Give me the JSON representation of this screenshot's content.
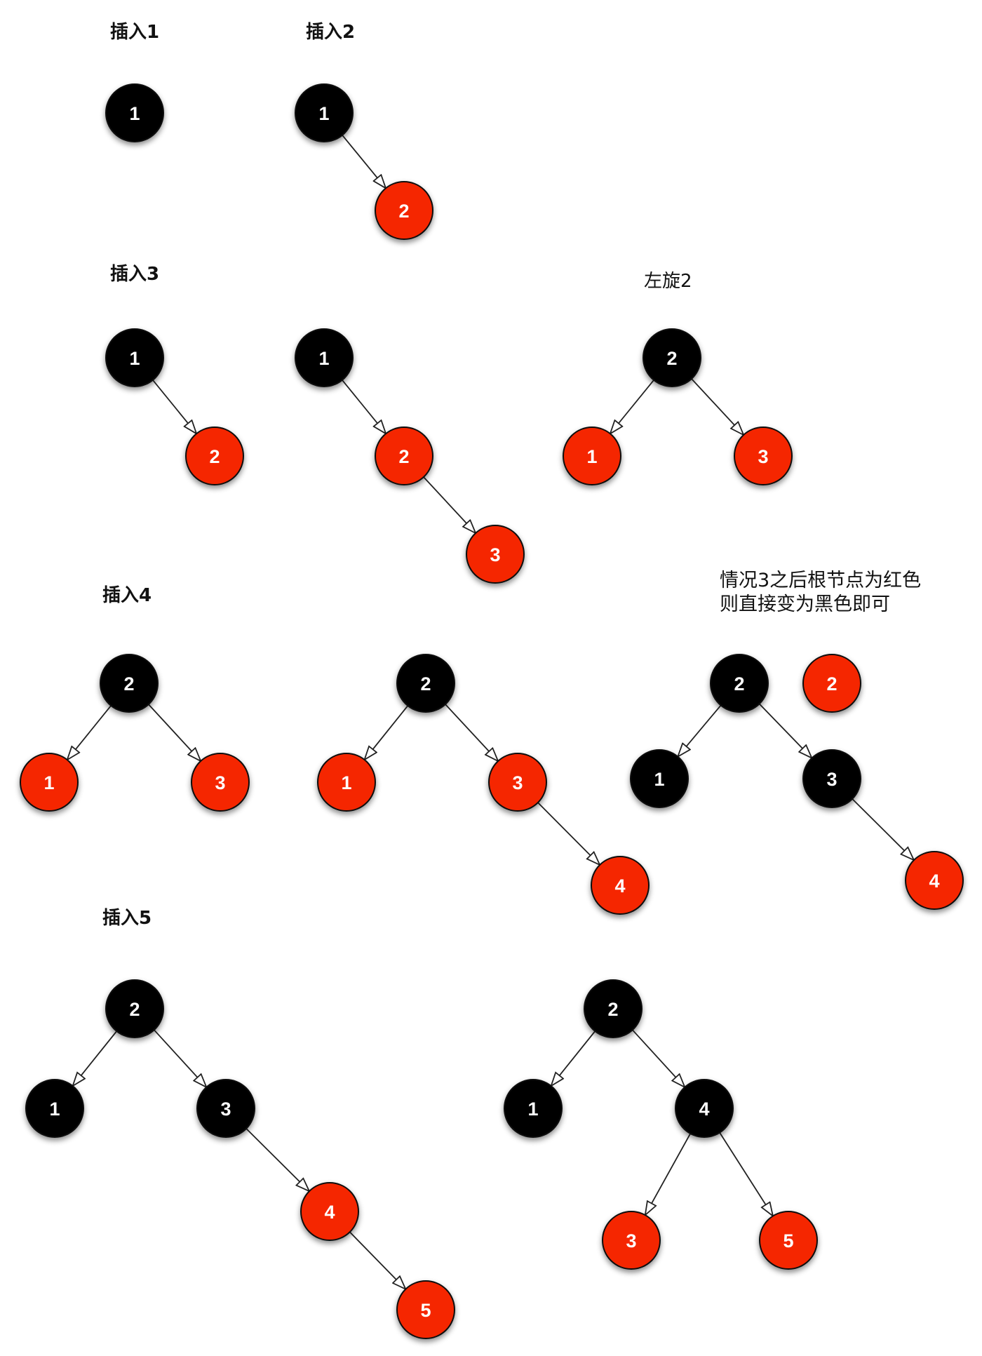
{
  "colors": {
    "red": "#f52800",
    "black": "#000000",
    "edge": "#222222",
    "background": "#ffffff"
  },
  "labels": {
    "insert_1": "插入1",
    "insert_2": "插入2",
    "insert_3": "插入3",
    "rotate_left": "左旋2",
    "insert_4": "插入4",
    "note_line_1": "情况3之后根节点为红色",
    "note_line_2": "则直接变为黑色即可",
    "insert_5": "插入5"
  },
  "trees": [
    {
      "name": "insert-1-tree",
      "nodes": [
        {
          "value": "1",
          "color": "black"
        }
      ],
      "edges": []
    },
    {
      "name": "insert-2-tree",
      "nodes": [
        {
          "value": "1",
          "color": "black"
        },
        {
          "value": "2",
          "color": "red"
        }
      ],
      "edges": [
        [
          0,
          1
        ]
      ]
    },
    {
      "name": "insert-3-step-1",
      "nodes": [
        {
          "value": "1",
          "color": "black"
        },
        {
          "value": "2",
          "color": "red"
        }
      ],
      "edges": [
        [
          0,
          1
        ]
      ]
    },
    {
      "name": "insert-3-step-2",
      "nodes": [
        {
          "value": "1",
          "color": "black"
        },
        {
          "value": "2",
          "color": "red"
        },
        {
          "value": "3",
          "color": "red"
        }
      ],
      "edges": [
        [
          0,
          1
        ],
        [
          1,
          2
        ]
      ]
    },
    {
      "name": "rotate-left-result",
      "nodes": [
        {
          "value": "2",
          "color": "black"
        },
        {
          "value": "1",
          "color": "red"
        },
        {
          "value": "3",
          "color": "red"
        }
      ],
      "edges": [
        [
          0,
          1
        ],
        [
          0,
          2
        ]
      ]
    },
    {
      "name": "insert-4-step-1",
      "nodes": [
        {
          "value": "2",
          "color": "black"
        },
        {
          "value": "1",
          "color": "red"
        },
        {
          "value": "3",
          "color": "red"
        }
      ],
      "edges": [
        [
          0,
          1
        ],
        [
          0,
          2
        ]
      ]
    },
    {
      "name": "insert-4-step-2",
      "nodes": [
        {
          "value": "2",
          "color": "black"
        },
        {
          "value": "1",
          "color": "red"
        },
        {
          "value": "3",
          "color": "red"
        },
        {
          "value": "4",
          "color": "red"
        }
      ],
      "edges": [
        [
          0,
          1
        ],
        [
          0,
          2
        ],
        [
          2,
          3
        ]
      ]
    },
    {
      "name": "insert-4-step-3",
      "nodes": [
        {
          "value": "2",
          "color": "black"
        },
        {
          "value": "1",
          "color": "black"
        },
        {
          "value": "3",
          "color": "black"
        },
        {
          "value": "4",
          "color": "red"
        }
      ],
      "edges": [
        [
          0,
          1
        ],
        [
          0,
          2
        ],
        [
          2,
          3
        ]
      ]
    },
    {
      "name": "red-root-marker",
      "nodes": [
        {
          "value": "2",
          "color": "red"
        }
      ],
      "edges": []
    },
    {
      "name": "insert-5-step-1",
      "nodes": [
        {
          "value": "2",
          "color": "black"
        },
        {
          "value": "1",
          "color": "black"
        },
        {
          "value": "3",
          "color": "black"
        },
        {
          "value": "4",
          "color": "red"
        },
        {
          "value": "5",
          "color": "red"
        }
      ],
      "edges": [
        [
          0,
          1
        ],
        [
          0,
          2
        ],
        [
          2,
          3
        ],
        [
          3,
          4
        ]
      ]
    },
    {
      "name": "insert-5-step-2",
      "nodes": [
        {
          "value": "2",
          "color": "black"
        },
        {
          "value": "1",
          "color": "black"
        },
        {
          "value": "4",
          "color": "black"
        },
        {
          "value": "3",
          "color": "red"
        },
        {
          "value": "5",
          "color": "red"
        }
      ],
      "edges": [
        [
          0,
          1
        ],
        [
          0,
          2
        ],
        [
          2,
          3
        ],
        [
          2,
          4
        ]
      ]
    }
  ]
}
